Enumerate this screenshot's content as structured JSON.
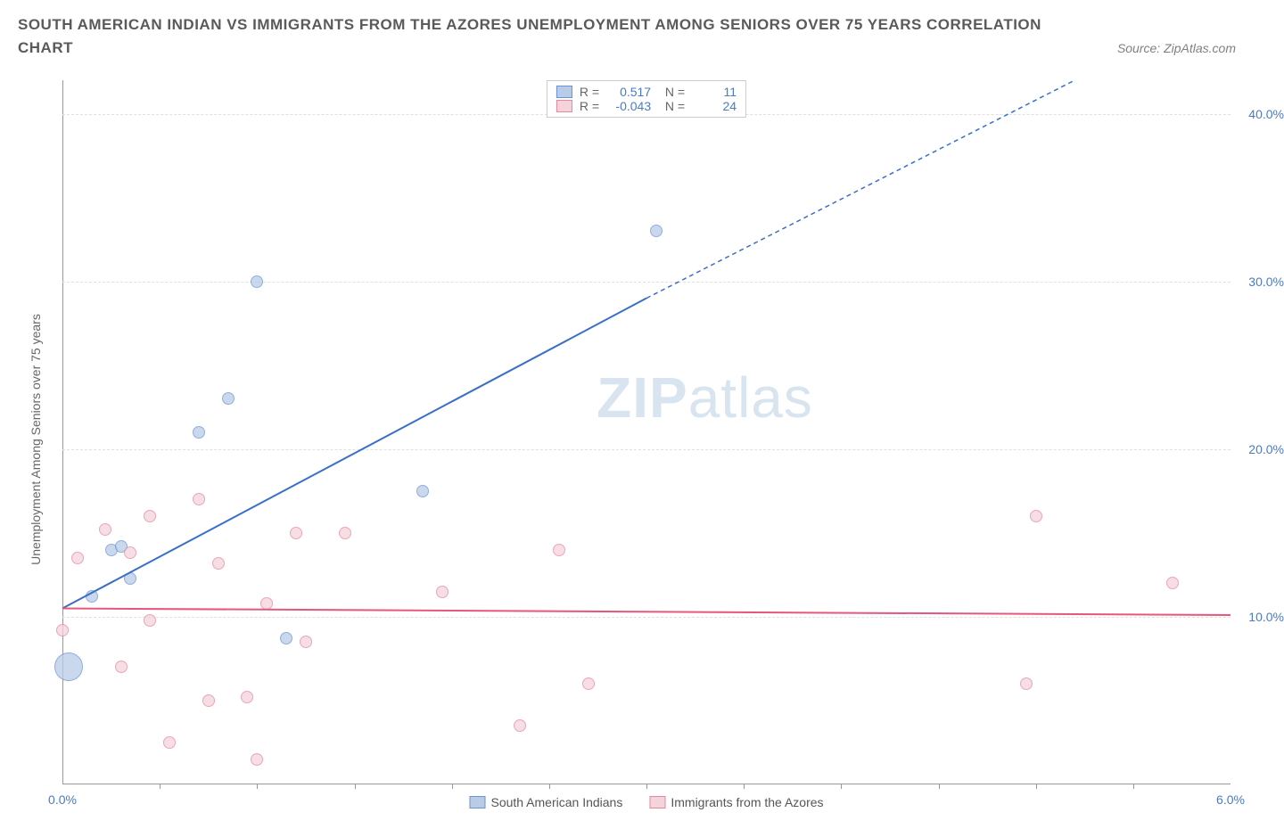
{
  "title": "SOUTH AMERICAN INDIAN VS IMMIGRANTS FROM THE AZORES UNEMPLOYMENT AMONG SENIORS OVER 75 YEARS CORRELATION",
  "subtitle": "CHART",
  "source": "Source: ZipAtlas.com",
  "ylabel": "Unemployment Among Seniors over 75 years",
  "watermark_a": "ZIP",
  "watermark_b": "atlas",
  "chart": {
    "type": "scatter",
    "xlim": [
      0,
      6
    ],
    "ylim": [
      0,
      42
    ],
    "x_ticks": [
      0,
      2,
      4,
      6
    ],
    "x_tick_labels": [
      "0.0%",
      "",
      "",
      "6.0%"
    ],
    "x_minor_ticks": [
      0.5,
      1,
      1.5,
      2,
      2.5,
      3,
      3.5,
      4,
      4.5,
      5,
      5.5
    ],
    "y_ticks": [
      10,
      20,
      30,
      40
    ],
    "y_tick_labels": [
      "10.0%",
      "20.0%",
      "30.0%",
      "40.0%"
    ],
    "background_color": "#ffffff",
    "grid_color": "#e0e0e0",
    "axis_label_color": "#4a7bc8",
    "series": [
      {
        "name": "South American Indians",
        "color_fill": "#b8cce8",
        "color_stroke": "#6a93d1",
        "trend_color": "#3a6fc9",
        "R": "0.517",
        "N": "11",
        "trend": {
          "x1": 0,
          "y1": 10.5,
          "x2": 3.0,
          "y2": 29,
          "dash_from_x": 3.0,
          "dash_to_x": 5.2,
          "dash_to_y": 42
        },
        "points": [
          {
            "x": 0.03,
            "y": 7,
            "r": 16
          },
          {
            "x": 0.15,
            "y": 11.2,
            "r": 7
          },
          {
            "x": 0.25,
            "y": 14,
            "r": 7
          },
          {
            "x": 0.3,
            "y": 14.2,
            "r": 7
          },
          {
            "x": 0.35,
            "y": 12.3,
            "r": 7
          },
          {
            "x": 1.15,
            "y": 8.7,
            "r": 7
          },
          {
            "x": 0.7,
            "y": 21,
            "r": 7
          },
          {
            "x": 0.85,
            "y": 23,
            "r": 7
          },
          {
            "x": 1.0,
            "y": 30,
            "r": 7
          },
          {
            "x": 1.85,
            "y": 17.5,
            "r": 7
          },
          {
            "x": 3.05,
            "y": 33,
            "r": 7
          }
        ]
      },
      {
        "name": "Immigrants from the Azores",
        "color_fill": "#f5d3db",
        "color_stroke": "#e6879f",
        "trend_color": "#e6577d",
        "R": "-0.043",
        "N": "24",
        "trend": {
          "x1": 0,
          "y1": 10.5,
          "x2": 6.0,
          "y2": 10.1
        },
        "points": [
          {
            "x": 0.0,
            "y": 9.2,
            "r": 7
          },
          {
            "x": 0.08,
            "y": 13.5,
            "r": 7
          },
          {
            "x": 0.22,
            "y": 15.2,
            "r": 7
          },
          {
            "x": 0.3,
            "y": 7,
            "r": 7
          },
          {
            "x": 0.35,
            "y": 13.8,
            "r": 7
          },
          {
            "x": 0.45,
            "y": 16,
            "r": 7
          },
          {
            "x": 0.45,
            "y": 9.8,
            "r": 7
          },
          {
            "x": 0.55,
            "y": 2.5,
            "r": 7
          },
          {
            "x": 0.7,
            "y": 17,
            "r": 7
          },
          {
            "x": 0.75,
            "y": 5,
            "r": 7
          },
          {
            "x": 0.8,
            "y": 13.2,
            "r": 7
          },
          {
            "x": 0.95,
            "y": 5.2,
            "r": 7
          },
          {
            "x": 1.05,
            "y": 10.8,
            "r": 7
          },
          {
            "x": 1.0,
            "y": 1.5,
            "r": 7
          },
          {
            "x": 1.2,
            "y": 15,
            "r": 7
          },
          {
            "x": 1.25,
            "y": 8.5,
            "r": 7
          },
          {
            "x": 1.95,
            "y": 11.5,
            "r": 7
          },
          {
            "x": 2.35,
            "y": 3.5,
            "r": 7
          },
          {
            "x": 2.55,
            "y": 14,
            "r": 7
          },
          {
            "x": 2.7,
            "y": 6,
            "r": 7
          },
          {
            "x": 4.95,
            "y": 6,
            "r": 7
          },
          {
            "x": 5.0,
            "y": 16,
            "r": 7
          },
          {
            "x": 5.7,
            "y": 12,
            "r": 7
          },
          {
            "x": 1.45,
            "y": 15,
            "r": 7
          }
        ]
      }
    ]
  }
}
